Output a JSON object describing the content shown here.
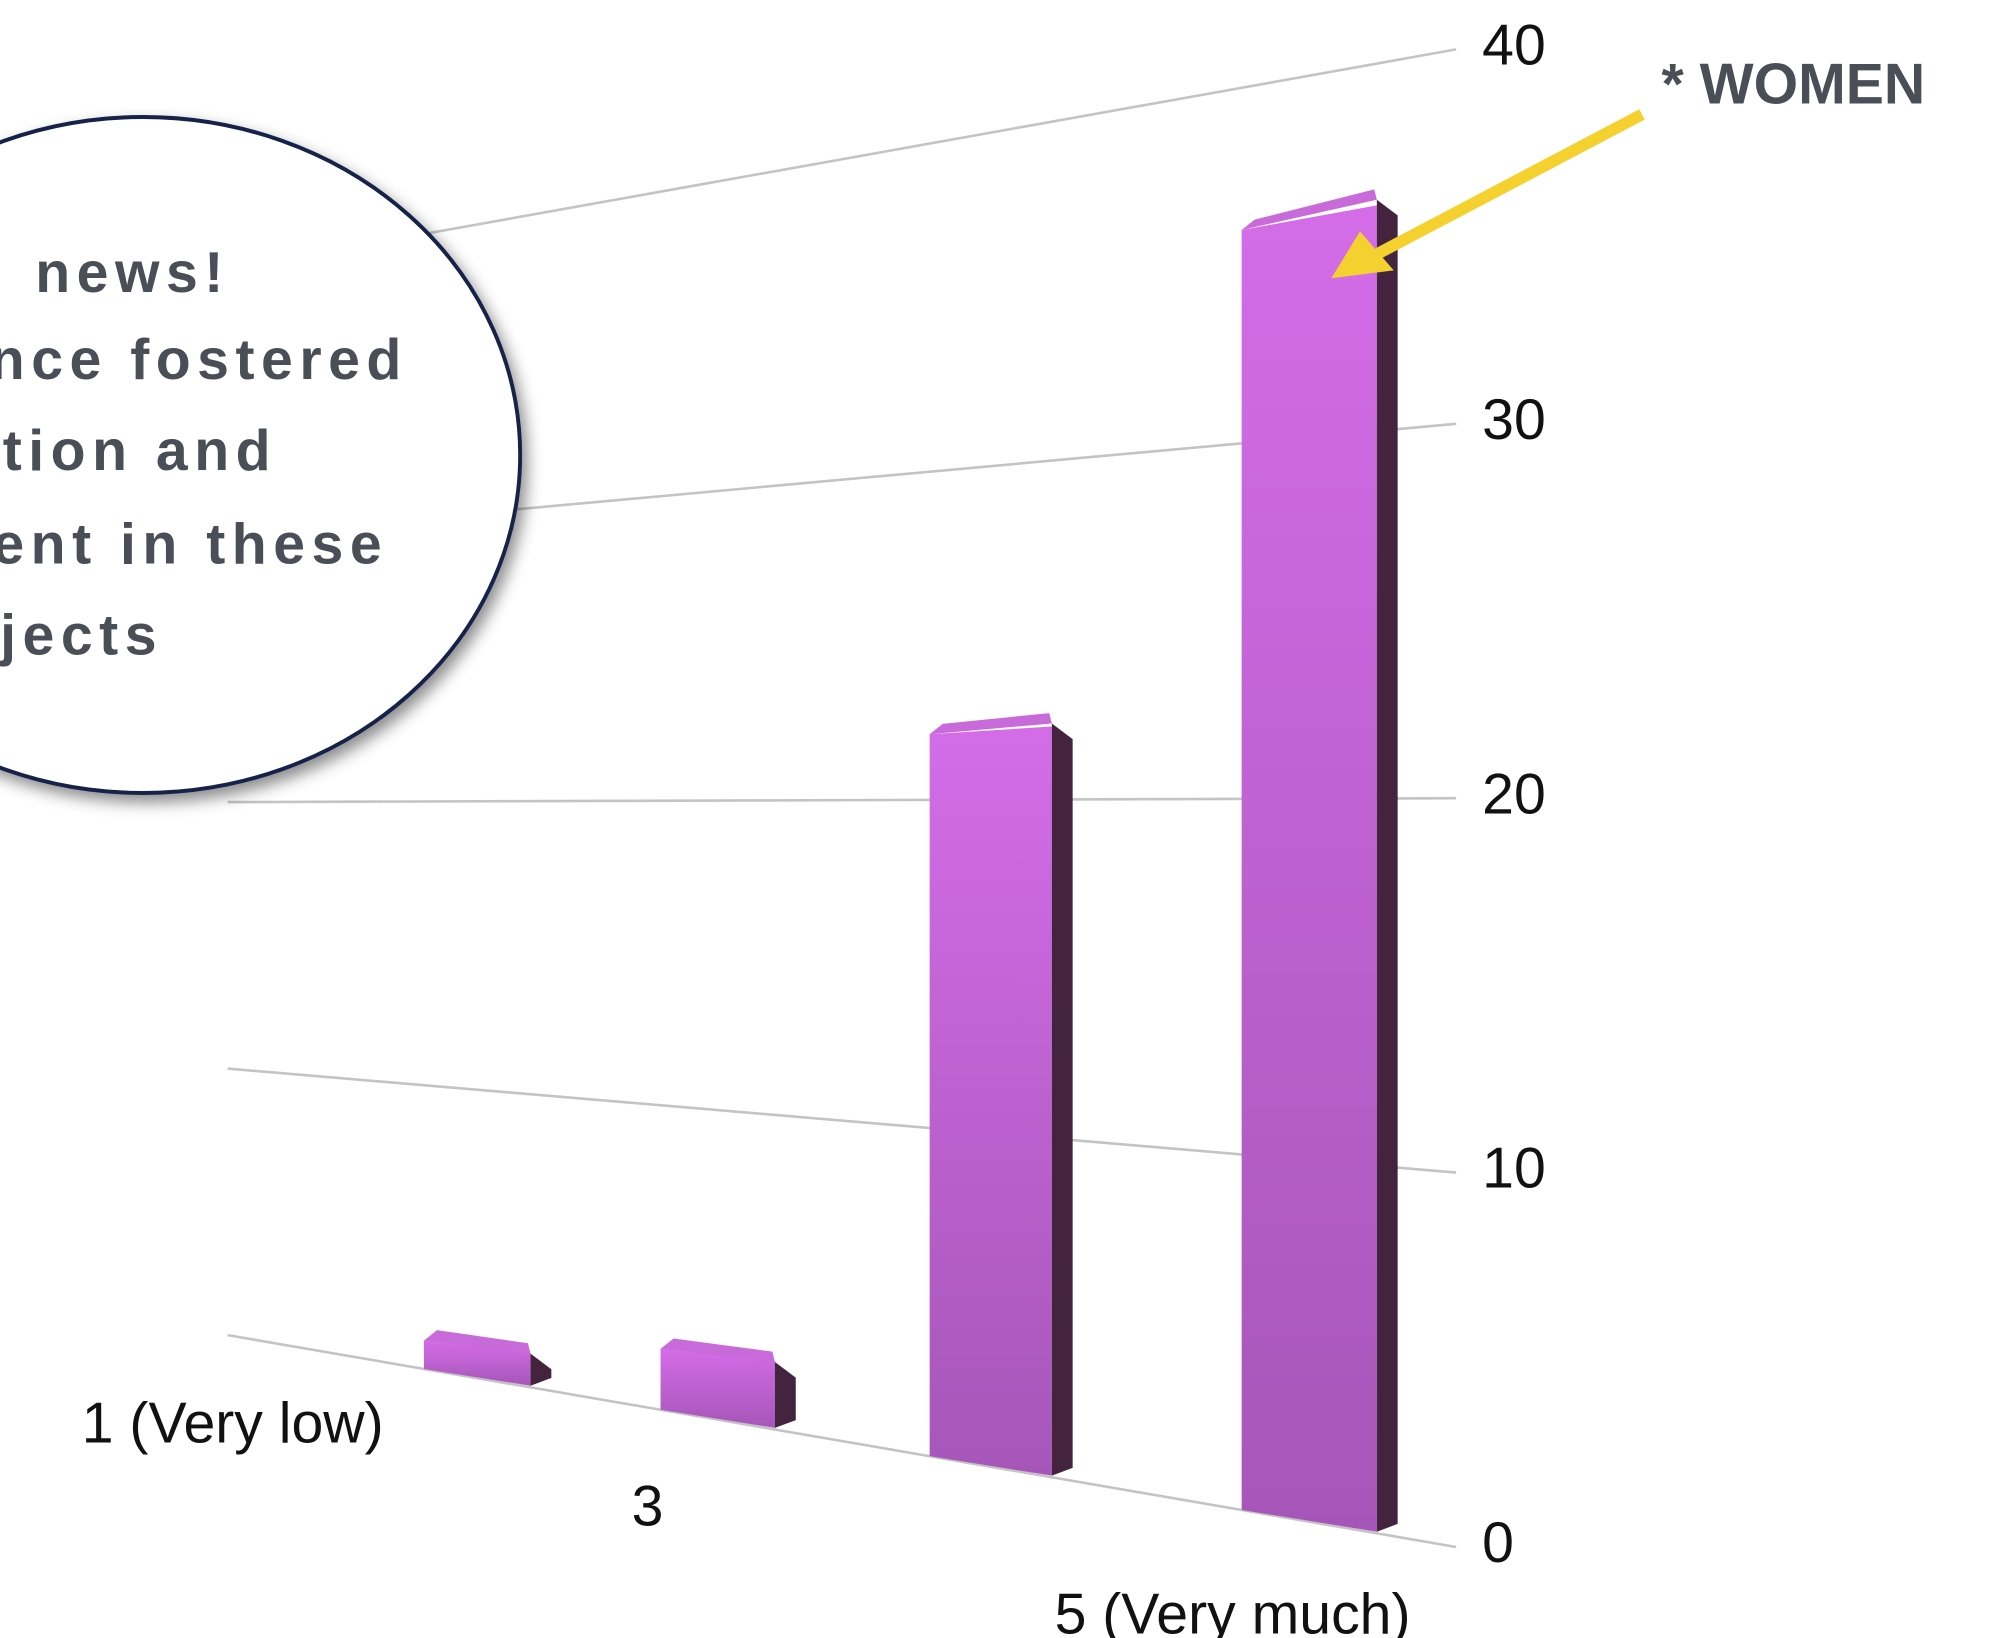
{
  "chart_data": {
    "type": "bar",
    "categories": [
      "1 (Very low)",
      "3",
      null,
      "5 (Very much)"
    ],
    "values": [
      1,
      2,
      22,
      36
    ],
    "color": "#b45ec8",
    "ylim": [
      0,
      40
    ],
    "yticks": [
      0,
      10,
      20,
      30,
      40
    ],
    "grid": true,
    "annotations": {
      "callout": [
        "news!",
        "nce fostered",
        "tion and",
        "ent in these",
        "jects"
      ],
      "arrow_note": "* WOMEN",
      "arrow_color": "#f5d130"
    }
  }
}
